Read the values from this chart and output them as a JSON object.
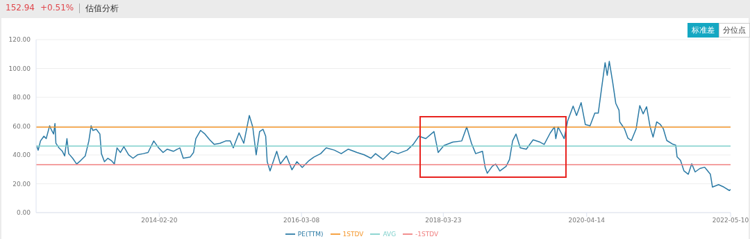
{
  "chart_data": {
    "type": "line",
    "annotations": [
      "152.94",
      "+0.51%",
      "估值分析",
      "标准差",
      "分位点"
    ],
    "xlim": [
      "2012-05-14",
      "2022-05-10"
    ],
    "xticks": [
      "2014-02-20",
      "2016-03-08",
      "2018-03-23",
      "2020-04-14",
      "2022-05-10"
    ],
    "ylim": [
      0,
      120
    ],
    "yticks": [
      {
        "value": 0,
        "label": "0.00"
      },
      {
        "value": 20,
        "label": "20.00"
      },
      {
        "value": 40,
        "label": "40.00"
      },
      {
        "value": 60,
        "label": "60.00"
      },
      {
        "value": 80,
        "label": "80.00"
      },
      {
        "value": 100,
        "label": "100.00"
      },
      {
        "value": 120,
        "label": "120.00"
      }
    ],
    "grid": "y",
    "legend": "bottom",
    "marker": "none",
    "line_style": "solid",
    "series": [
      {
        "name": "PE(TTM)",
        "color": "#2b7aa5",
        "x": [
          "2012-05-16",
          "2012-05-25",
          "2012-06-06",
          "2012-06-24",
          "2012-07-06",
          "2012-07-24",
          "2012-08-01",
          "2012-08-14",
          "2012-08-21",
          "2012-08-26",
          "2012-09-11",
          "2012-09-29",
          "2012-10-11",
          "2012-10-23",
          "2012-11-01",
          "2012-11-22",
          "2012-12-13",
          "2013-01-03",
          "2013-01-27",
          "2013-02-15",
          "2013-02-27",
          "2013-03-08",
          "2013-03-26",
          "2013-04-14",
          "2013-04-22",
          "2013-05-08",
          "2013-05-26",
          "2013-06-13",
          "2013-06-29",
          "2013-07-13",
          "2013-07-31",
          "2013-08-18",
          "2013-09-12",
          "2013-10-05",
          "2013-10-29",
          "2013-11-28",
          "2013-12-23",
          "2014-01-22",
          "2014-02-16",
          "2014-03-12",
          "2014-04-03",
          "2014-05-05",
          "2014-06-08",
          "2014-06-26",
          "2014-08-01",
          "2014-08-19",
          "2014-08-31",
          "2014-09-25",
          "2014-10-18",
          "2014-11-12",
          "2014-12-06",
          "2015-01-05",
          "2015-02-04",
          "2015-02-28",
          "2015-03-16",
          "2015-04-15",
          "2015-05-10",
          "2015-06-08",
          "2015-06-26",
          "2015-07-14",
          "2015-08-01",
          "2015-08-19",
          "2015-09-02",
          "2015-09-10",
          "2015-09-25",
          "2015-10-30",
          "2015-11-18",
          "2015-12-20",
          "2016-01-18",
          "2016-02-13",
          "2016-03-12",
          "2016-04-17",
          "2016-05-12",
          "2016-06-17",
          "2016-07-16",
          "2016-08-28",
          "2016-10-03",
          "2016-11-09",
          "2016-12-25",
          "2017-01-31",
          "2017-03-08",
          "2017-04-01",
          "2017-05-10",
          "2017-06-23",
          "2017-07-28",
          "2017-09-14",
          "2017-10-16",
          "2017-11-15",
          "2017-12-21",
          "2018-02-02",
          "2018-02-24",
          "2018-03-26",
          "2018-05-12",
          "2018-06-28",
          "2018-07-24",
          "2018-08-18",
          "2018-09-09",
          "2018-10-15",
          "2018-10-29",
          "2018-11-09",
          "2018-12-05",
          "2018-12-23",
          "2019-01-14",
          "2019-02-16",
          "2019-03-06",
          "2019-03-22",
          "2019-04-09",
          "2019-05-01",
          "2019-06-02",
          "2019-07-08",
          "2019-08-13",
          "2019-09-04",
          "2019-10-06",
          "2019-10-28",
          "2019-11-04",
          "2019-11-16",
          "2019-12-18",
          "2020-01-05",
          "2020-02-03",
          "2020-02-21",
          "2020-03-16",
          "2020-04-07",
          "2020-05-02",
          "2020-05-27",
          "2020-06-14",
          "2020-07-02",
          "2020-07-20",
          "2020-07-31",
          "2020-08-11",
          "2020-08-29",
          "2020-09-14",
          "2020-10-01",
          "2020-10-05",
          "2020-10-30",
          "2020-11-17",
          "2020-12-05",
          "2020-12-30",
          "2021-01-18",
          "2021-02-05",
          "2021-02-23",
          "2021-03-13",
          "2021-03-29",
          "2021-04-17",
          "2021-05-05",
          "2021-05-22",
          "2021-06-09",
          "2021-07-08",
          "2021-07-26",
          "2021-08-02",
          "2021-08-20",
          "2021-09-07",
          "2021-09-30",
          "2021-10-18",
          "2021-11-05",
          "2021-11-30",
          "2021-12-25",
          "2022-01-24",
          "2022-02-04",
          "2022-03-08",
          "2022-04-05",
          "2022-05-04",
          "2022-05-10"
        ],
        "values": [
          46.5,
          43.3,
          49.7,
          53,
          51.3,
          60.2,
          57.8,
          54.5,
          61.8,
          48.1,
          44.9,
          42.5,
          39.3,
          51.3,
          40.9,
          37.7,
          33.7,
          36.1,
          39.3,
          49.7,
          60.2,
          57,
          57.8,
          54.5,
          40.9,
          35.3,
          37.7,
          36.1,
          33.7,
          44.9,
          41.7,
          45.7,
          40.1,
          37.7,
          40.1,
          40.9,
          41.7,
          49.7,
          45,
          41.7,
          44,
          42.5,
          44.9,
          37.7,
          38.5,
          41.7,
          51.3,
          57,
          54.5,
          50.5,
          47.3,
          48.1,
          49.7,
          49.7,
          44.9,
          55.3,
          48.1,
          67.4,
          59.4,
          40.1,
          56.2,
          57.8,
          53,
          35.3,
          28.9,
          42.5,
          33.7,
          39.3,
          29.7,
          35.3,
          31.3,
          36.1,
          38.5,
          40.9,
          44.9,
          43.3,
          40.9,
          44,
          41.7,
          40.1,
          37.7,
          40.9,
          36.9,
          42.5,
          40.9,
          43.3,
          47.3,
          53,
          51.3,
          56.2,
          41.7,
          46.5,
          48.9,
          49.7,
          59.4,
          48.1,
          40.9,
          42.5,
          31.3,
          27.3,
          32.1,
          33.7,
          28.9,
          32.1,
          36.9,
          49.7,
          54.5,
          44.9,
          44,
          50.5,
          48.9,
          47.3,
          55.3,
          59.4,
          51.3,
          59.4,
          51.3,
          63.5,
          73.9,
          67.4,
          76.3,
          61.1,
          60.2,
          69,
          69,
          86.7,
          104,
          95.2,
          104.9,
          90.3,
          75.8,
          71,
          62.9,
          58.1,
          51.6,
          50,
          58.1,
          74.2,
          68.5,
          73.4,
          59.7,
          52.4,
          62.9,
          61.3,
          58.1,
          50,
          47.6,
          46.8,
          38.7,
          36.3,
          29,
          26.6,
          33.9,
          28.2,
          30.6,
          31.5,
          26.6,
          17.7,
          19.4,
          17.7,
          15.3,
          16.1
        ]
      },
      {
        "name": "1STDV",
        "color": "#f5962a",
        "x": [
          "2012-05-14",
          "2022-05-10"
        ],
        "values": [
          59.3,
          59.3
        ]
      },
      {
        "name": "AVG",
        "color": "#7fd0cc",
        "x": [
          "2012-05-14",
          "2022-05-10"
        ],
        "values": [
          46.2,
          46.2
        ]
      },
      {
        "name": "-1STDV",
        "color": "#f07f7f",
        "x": [
          "2012-05-14",
          "2022-05-10"
        ],
        "values": [
          33.2,
          33.2
        ]
      }
    ]
  }
}
